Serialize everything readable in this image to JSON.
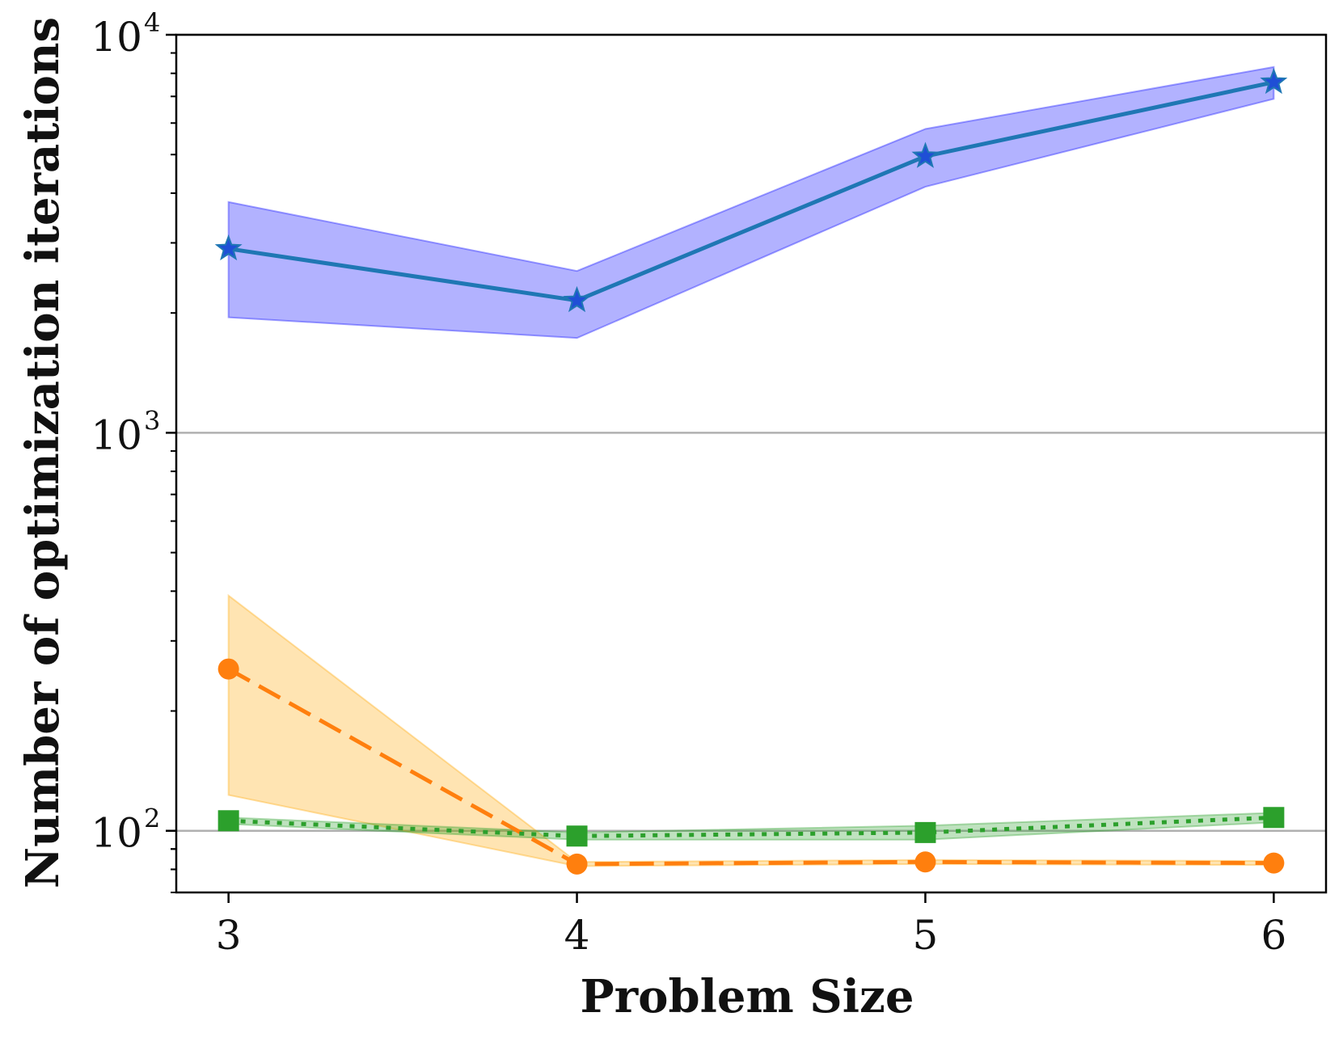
{
  "chart_data": {
    "type": "line",
    "title": "",
    "xlabel": "Problem Size",
    "ylabel": "Number of optimization iterations",
    "yscale": "log",
    "ylim": [
      70,
      10000
    ],
    "xlim": [
      2.85,
      6.15
    ],
    "x": [
      3,
      4,
      5,
      6
    ],
    "xticks": [
      "3",
      "4",
      "5",
      "6"
    ],
    "yticks": [
      {
        "value": 100,
        "base": "10",
        "exp": "2"
      },
      {
        "value": 1000,
        "base": "10",
        "exp": "3"
      },
      {
        "value": 10000,
        "base": "10",
        "exp": "4"
      }
    ],
    "grid": "horizontal major lines",
    "series": [
      {
        "name": "blue-star-series",
        "marker": "star",
        "linestyle": "solid",
        "color": "#1f77b4",
        "band_color": "#0000ff",
        "values": [
          2900,
          2150,
          4950,
          7600
        ],
        "band_lower": [
          1950,
          1730,
          4150,
          6900
        ],
        "band_upper": [
          3800,
          2550,
          5800,
          8300
        ]
      },
      {
        "name": "orange-circle-series",
        "marker": "circle",
        "linestyle": "dashed",
        "color": "#ff7f0e",
        "band_color": "#ffa500",
        "values": [
          255,
          82.5,
          83.5,
          83
        ],
        "band_lower": [
          123,
          81.5,
          82.5,
          82
        ],
        "band_upper": [
          390,
          83.5,
          84.5,
          84
        ]
      },
      {
        "name": "green-square-series",
        "marker": "square",
        "linestyle": "dotted",
        "color": "#2ca02c",
        "band_color": "#2ca02c",
        "values": [
          106,
          97,
          99,
          108
        ],
        "band_lower": [
          104,
          95,
          95,
          105
        ],
        "band_upper": [
          108,
          99,
          103,
          111
        ]
      }
    ]
  }
}
